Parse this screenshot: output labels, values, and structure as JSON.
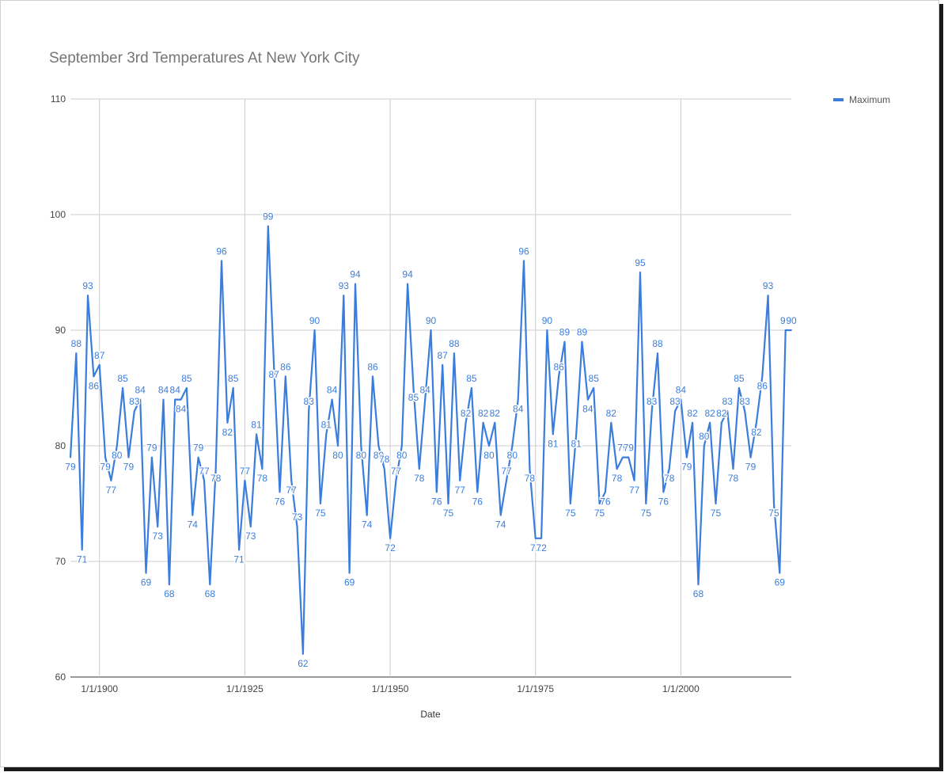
{
  "chart_data": {
    "type": "line",
    "title": "September 3rd Temperatures At New York City",
    "xlabel": "Date",
    "ylabel": "",
    "xlim": [
      1895,
      2019
    ],
    "ylim": [
      60,
      110
    ],
    "yticks": [
      60,
      70,
      80,
      90,
      100,
      110
    ],
    "xticks": [
      {
        "label": "1/1/1900",
        "year": 1900
      },
      {
        "label": "1/1/1925",
        "year": 1925
      },
      {
        "label": "1/1/1950",
        "year": 1950
      },
      {
        "label": "1/1/1975",
        "year": 1975
      },
      {
        "label": "1/1/2000",
        "year": 2000
      }
    ],
    "grid": true,
    "legend_position": "top-right",
    "series_color": "#3b7ddd",
    "series": [
      {
        "name": "Maximum",
        "x": [
          1895,
          1896,
          1897,
          1898,
          1899,
          1900,
          1901,
          1902,
          1903,
          1904,
          1905,
          1906,
          1907,
          1908,
          1909,
          1910,
          1911,
          1912,
          1913,
          1914,
          1915,
          1916,
          1917,
          1918,
          1919,
          1920,
          1921,
          1922,
          1923,
          1924,
          1925,
          1926,
          1927,
          1928,
          1929,
          1930,
          1931,
          1932,
          1933,
          1934,
          1935,
          1936,
          1937,
          1938,
          1939,
          1940,
          1941,
          1942,
          1943,
          1944,
          1945,
          1946,
          1947,
          1948,
          1949,
          1950,
          1951,
          1952,
          1953,
          1954,
          1955,
          1956,
          1957,
          1958,
          1959,
          1960,
          1961,
          1962,
          1963,
          1964,
          1965,
          1966,
          1967,
          1968,
          1969,
          1970,
          1971,
          1972,
          1973,
          1974,
          1975,
          1976,
          1977,
          1978,
          1979,
          1980,
          1981,
          1982,
          1983,
          1984,
          1985,
          1986,
          1987,
          1988,
          1989,
          1990,
          1991,
          1992,
          1993,
          1994,
          1995,
          1996,
          1997,
          1998,
          1999,
          2000,
          2001,
          2002,
          2003,
          2004,
          2005,
          2006,
          2007,
          2008,
          2009,
          2010,
          2011,
          2012,
          2013,
          2014,
          2015,
          2016,
          2017,
          2018,
          2019
        ],
        "values": [
          79,
          88,
          71,
          93,
          86,
          87,
          79,
          77,
          80,
          85,
          79,
          83,
          84,
          69,
          79,
          73,
          84,
          68,
          84,
          84,
          85,
          74,
          79,
          77,
          68,
          78,
          96,
          82,
          85,
          71,
          77,
          73,
          81,
          78,
          99,
          87,
          76,
          86,
          77,
          73,
          62,
          83,
          90,
          75,
          81,
          84,
          80,
          93,
          69,
          94,
          80,
          74,
          86,
          80,
          78,
          72,
          77,
          80,
          94,
          85,
          78,
          84,
          90,
          76,
          87,
          75,
          88,
          77,
          82,
          85,
          76,
          82,
          80,
          82,
          74,
          77,
          80,
          84,
          96,
          78,
          72,
          72,
          90,
          81,
          86,
          89,
          75,
          81,
          89,
          84,
          85,
          75,
          76,
          82,
          78,
          79,
          79,
          77,
          95,
          75,
          83,
          88,
          76,
          78,
          83,
          84,
          79,
          82,
          68,
          80,
          82,
          75,
          82,
          83,
          78,
          85,
          83,
          79,
          82,
          86,
          93,
          75,
          69,
          90,
          90
        ]
      }
    ]
  }
}
